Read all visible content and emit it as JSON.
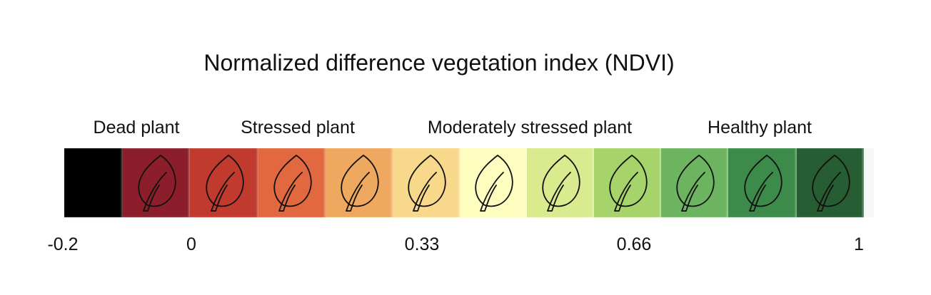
{
  "title": "Normalized difference vegetation index (NDVI)",
  "categories": [
    {
      "label": "Dead plant"
    },
    {
      "label": "Stressed plant"
    },
    {
      "label": "Moderately stressed plant"
    },
    {
      "label": "Healthy plant"
    }
  ],
  "scale": {
    "min": -0.2,
    "max": 1,
    "ticks": [
      "-0.2",
      "0",
      "0.33",
      "0.66",
      "1"
    ]
  },
  "segments": [
    {
      "color": "#000000",
      "icon": "none"
    },
    {
      "color": "#8b1e2a",
      "icon": "leaf-icon"
    },
    {
      "color": "#c03a2e",
      "icon": "leaf-icon"
    },
    {
      "color": "#e2683f",
      "icon": "leaf-icon"
    },
    {
      "color": "#eea85f",
      "icon": "leaf-icon"
    },
    {
      "color": "#f8d88a",
      "icon": "leaf-icon"
    },
    {
      "color": "#fdfdc0",
      "icon": "leaf-icon"
    },
    {
      "color": "#d9eb8e",
      "icon": "leaf-icon"
    },
    {
      "color": "#a6d46a",
      "icon": "leaf-icon"
    },
    {
      "color": "#6db461",
      "icon": "leaf-icon"
    },
    {
      "color": "#3c8b4a",
      "icon": "leaf-icon"
    },
    {
      "color": "#265d33",
      "icon": "leaf-icon"
    },
    {
      "color": "#f6f8f6",
      "icon": "none"
    }
  ]
}
